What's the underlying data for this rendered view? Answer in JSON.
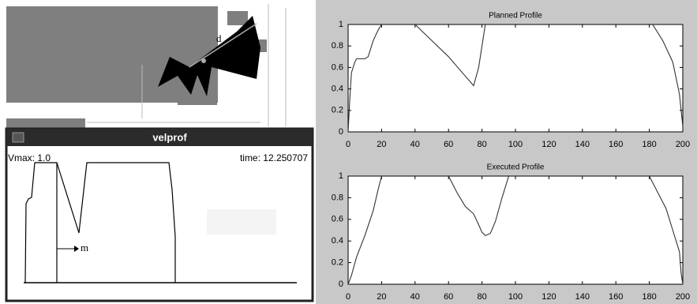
{
  "chart_data": [
    {
      "type": "line",
      "title": "Planned Profile",
      "color": "#333333",
      "x": [
        0,
        1,
        2,
        4,
        5,
        10,
        12,
        15,
        18,
        20,
        null,
        40,
        50,
        60,
        70,
        75,
        78,
        82,
        null,
        182,
        188,
        194,
        198,
        200
      ],
      "values": [
        0,
        0.3,
        0.55,
        0.65,
        0.68,
        0.68,
        0.7,
        0.85,
        0.95,
        1,
        null,
        1,
        0.85,
        0.7,
        0.52,
        0.43,
        0.6,
        1,
        null,
        1,
        0.85,
        0.65,
        0.35,
        0.05
      ],
      "xlim": [
        0,
        200
      ],
      "xticks": [
        0,
        20,
        40,
        60,
        80,
        100,
        120,
        140,
        160,
        180,
        200
      ],
      "ylim": [
        0,
        1
      ],
      "yticks": [
        0,
        0.2,
        0.4,
        0.6,
        0.8,
        1
      ]
    },
    {
      "type": "line",
      "title": "Executed Profile",
      "color": "#333333",
      "x": [
        0,
        2,
        5,
        10,
        15,
        18,
        20,
        null,
        60,
        65,
        70,
        75,
        78,
        80,
        82,
        85,
        88,
        92,
        96,
        null,
        180,
        185,
        190,
        195,
        198,
        199,
        200
      ],
      "values": [
        0,
        0.08,
        0.25,
        0.45,
        0.68,
        0.88,
        1,
        null,
        1,
        0.85,
        0.72,
        0.65,
        0.55,
        0.48,
        0.45,
        0.47,
        0.58,
        0.8,
        1,
        null,
        1,
        0.85,
        0.7,
        0.45,
        0.3,
        0.1,
        0
      ],
      "xlim": [
        0,
        200
      ],
      "xticks": [
        0,
        20,
        40,
        60,
        80,
        100,
        120,
        140,
        160,
        180,
        200
      ],
      "ylim": [
        0,
        1
      ],
      "yticks": [
        0,
        0.2,
        0.4,
        0.6,
        0.8,
        1
      ]
    }
  ],
  "map": {
    "label": "d"
  },
  "window": {
    "title": "velprof",
    "vmax": "Vmax: 1.0",
    "time": "time: 12.250707",
    "marker": "m"
  }
}
